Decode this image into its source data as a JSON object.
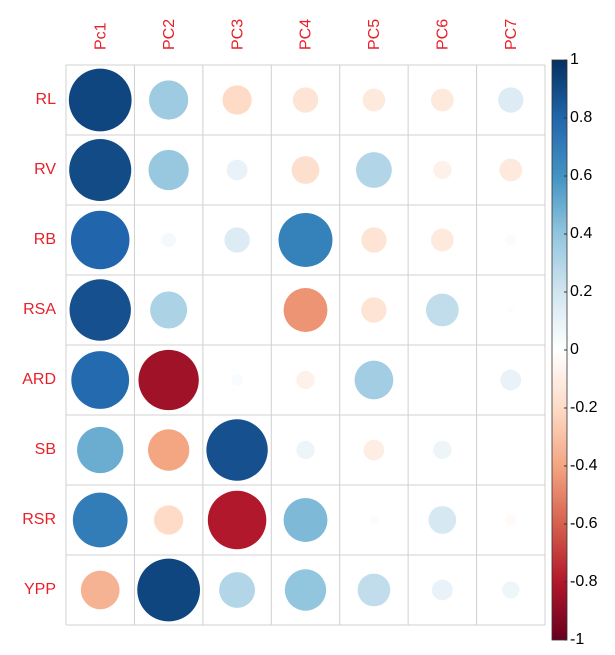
{
  "chart_data": {
    "type": "corrplot",
    "categories": [
      "Pc1",
      "PC2",
      "PC3",
      "PC4",
      "PC5",
      "PC6",
      "PC7"
    ],
    "rows": [
      "RL",
      "RV",
      "RB",
      "RSA",
      "ARD",
      "SB",
      "RSR",
      "YPP"
    ],
    "values": [
      [
        0.92,
        0.36,
        -0.2,
        -0.15,
        -0.12,
        -0.12,
        0.15
      ],
      [
        0.9,
        0.38,
        0.1,
        -0.18,
        0.3,
        -0.08,
        -0.12
      ],
      [
        0.8,
        0.05,
        0.15,
        0.68,
        -0.15,
        -0.12,
        -0.03
      ],
      [
        0.88,
        0.32,
        0,
        -0.45,
        -0.15,
        0.25,
        -0.01
      ],
      [
        0.78,
        -0.85,
        0.03,
        -0.08,
        0.35,
        0,
        0.1
      ],
      [
        0.5,
        -0.4,
        0.88,
        0.08,
        -0.1,
        0.08,
        0
      ],
      [
        0.7,
        -0.2,
        -0.8,
        0.45,
        0.02,
        0.18,
        -0.03
      ],
      [
        -0.35,
        0.92,
        0.3,
        0.4,
        0.25,
        0.1,
        0.07
      ]
    ],
    "clim": [
      -1,
      1
    ],
    "cticks": [
      1,
      0.8,
      0.6,
      0.4,
      0.2,
      0,
      -0.2,
      -0.4,
      -0.6,
      -0.8,
      -1
    ],
    "colorscale": [
      "#67001f",
      "#b2182b",
      "#d6604d",
      "#f4a582",
      "#fddbc7",
      "#ffffff",
      "#d1e5f0",
      "#92c5de",
      "#4393c3",
      "#2166ac",
      "#053061"
    ],
    "label_color": "#e8202a"
  }
}
